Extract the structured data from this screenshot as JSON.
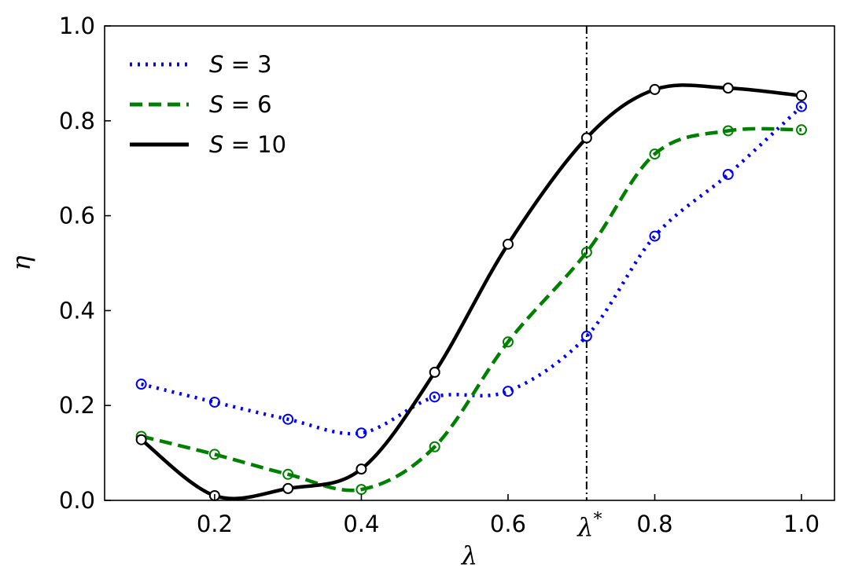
{
  "chart_data": {
    "type": "line",
    "xlabel": "λ",
    "ylabel": "η",
    "xlim": [
      0.05,
      1.045
    ],
    "ylim": [
      0.0,
      1.0
    ],
    "x": [
      0.1,
      0.2,
      0.3,
      0.4,
      0.5,
      0.6,
      0.7071,
      0.8,
      0.9,
      1.0
    ],
    "xticks": [
      0.2,
      0.4,
      0.6,
      0.8,
      1.0
    ],
    "xtick_labels": [
      "0.2",
      "0.4",
      "0.6",
      "0.8",
      "1.0"
    ],
    "yticks": [
      0.0,
      0.2,
      0.4,
      0.6,
      0.8,
      1.0
    ],
    "ytick_labels": [
      "0.0",
      "0.2",
      "0.4",
      "0.6",
      "0.8",
      "1.0"
    ],
    "grid": false,
    "legend_position": "top-left",
    "vline": {
      "x": 0.7071,
      "label": "λ",
      "label_sup": "*",
      "color": "#000000",
      "style": "dash-dot"
    },
    "series": [
      {
        "name": "S = 3",
        "name_base": "S",
        "name_value": " = 3",
        "color": "#0000ff",
        "style": "dotted",
        "values": [
          0.245,
          0.207,
          0.171,
          0.142,
          0.218,
          0.23,
          0.346,
          0.557,
          0.687,
          0.83
        ]
      },
      {
        "name": "S = 6",
        "name_base": "S",
        "name_value": " = 6",
        "color": "#008000",
        "style": "dashed",
        "values": [
          0.135,
          0.097,
          0.055,
          0.023,
          0.113,
          0.334,
          0.523,
          0.73,
          0.779,
          0.781
        ]
      },
      {
        "name": "S = 10",
        "name_base": "S",
        "name_value": " = 10",
        "color": "#000000",
        "style": "solid",
        "values": [
          0.128,
          0.01,
          0.025,
          0.066,
          0.27,
          0.54,
          0.764,
          0.866,
          0.869,
          0.853
        ]
      }
    ]
  }
}
